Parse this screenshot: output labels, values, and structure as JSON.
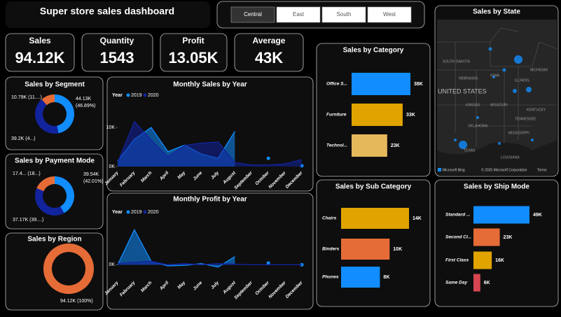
{
  "header": {
    "title": "Super store sales dashboard"
  },
  "filters": [
    "Central",
    "East",
    "South",
    "West"
  ],
  "kpis": [
    {
      "label": "Sales",
      "value": "94.12K"
    },
    {
      "label": "Quantity",
      "value": "1543"
    },
    {
      "label": "Profit",
      "value": "13.05K"
    },
    {
      "label": "Average",
      "value": "43K"
    }
  ],
  "map": {
    "title": "Sales by State",
    "labels": [
      "UNITED STATES",
      "SOUTH DAKOTA",
      "NEBRASKA",
      "KANSAS",
      "OKLAHOMA",
      "TEXAS",
      "IOWA",
      "MISSOURI",
      "ILLINOIS",
      "MICHIGAN",
      "KENTUCKY",
      "TENNESSEE",
      "MISSISSIPPI",
      "LOUISIANA"
    ],
    "credits": [
      "Microsoft Bing",
      "© 2025 Microsoft Corporation",
      "Terms"
    ]
  },
  "chart_data": [
    {
      "type": "donut",
      "title": "Sales by Segment",
      "values": [
        44130,
        39200,
        10790
      ],
      "value_labels": [
        "44.13K (46.89%)",
        "39.2K (4...)",
        "10.79K (11....)"
      ],
      "colors": [
        "#118dff",
        "#12239e",
        "#e66c37"
      ]
    },
    {
      "type": "donut",
      "title": "Sales by Payment Mode",
      "values": [
        39540,
        37170,
        17410
      ],
      "value_labels": [
        "39.54K (42.01%)",
        "37.17K (39....)",
        "17.4... (18...)"
      ],
      "colors": [
        "#118dff",
        "#12239e",
        "#e66c37"
      ]
    },
    {
      "type": "donut",
      "title": "Sales by Region",
      "values": [
        94120
      ],
      "value_labels": [
        "94.12K (100%)"
      ],
      "colors": [
        "#e66c37"
      ]
    },
    {
      "type": "area",
      "title": "Monthly Sales by Year",
      "legend_title": "Year",
      "categories": [
        "January",
        "February",
        "March",
        "April",
        "May",
        "June",
        "July",
        "August",
        "September",
        "October",
        "November",
        "December"
      ],
      "series": [
        {
          "name": "2019",
          "color": "#118dff",
          "values": [
            1400,
            7000,
            10000,
            3800,
            5500,
            3200,
            2100,
            9000,
            null,
            2100,
            null,
            200
          ]
        },
        {
          "name": "2020",
          "color": "#12239e",
          "values": [
            1000,
            11500,
            6800,
            2500,
            5400,
            6000,
            6300,
            1000,
            400,
            400,
            700,
            1800
          ]
        }
      ],
      "ylim": [
        0,
        12000
      ],
      "yticks": [
        {
          "value": 0,
          "label": "0K"
        },
        {
          "value": 10000,
          "label": "10K"
        }
      ]
    },
    {
      "type": "area",
      "title": "Monthly Profit by Year",
      "legend_title": "Year",
      "categories": [
        "January",
        "February",
        "March",
        "April",
        "May",
        "June",
        "July",
        "August",
        "September",
        "October",
        "November",
        "December"
      ],
      "series": [
        {
          "name": "2019",
          "color": "#118dff",
          "values": [
            0,
            3000,
            300,
            -100,
            -50,
            100,
            -200,
            700,
            null,
            150,
            null,
            0
          ]
        },
        {
          "name": "2020",
          "color": "#12239e",
          "values": [
            100,
            200,
            300,
            0,
            100,
            0,
            100,
            50,
            0,
            0,
            0,
            0
          ]
        }
      ],
      "ylim": [
        -1000,
        3500
      ],
      "yticks": [
        {
          "value": 0,
          "label": "0K"
        }
      ]
    },
    {
      "type": "hbar",
      "title": "Sales by Category",
      "categories": [
        "Office S...",
        "Furniture",
        "Technol..."
      ],
      "values": [
        38000,
        33000,
        23000
      ],
      "value_labels": [
        "38K",
        "33K",
        "23K"
      ],
      "colors": [
        "#118dff",
        "#e0a300",
        "#e6b85c"
      ]
    },
    {
      "type": "hbar",
      "title": "Sales by Sub Category",
      "categories": [
        "Chairs",
        "Binders",
        "Phones"
      ],
      "values": [
        14000,
        10000,
        8000
      ],
      "value_labels": [
        "14K",
        "10K",
        "8K"
      ],
      "colors": [
        "#e0a300",
        "#e66c37",
        "#118dff"
      ]
    },
    {
      "type": "hbar",
      "title": "Sales by Ship Mode",
      "categories": [
        "Standard ...",
        "Second Cl...",
        "First Class",
        "Same Day"
      ],
      "values": [
        49000,
        23000,
        16000,
        6000
      ],
      "value_labels": [
        "49K",
        "23K",
        "16K",
        "6K"
      ],
      "colors": [
        "#118dff",
        "#e66c37",
        "#e0a300",
        "#d64550"
      ]
    }
  ]
}
